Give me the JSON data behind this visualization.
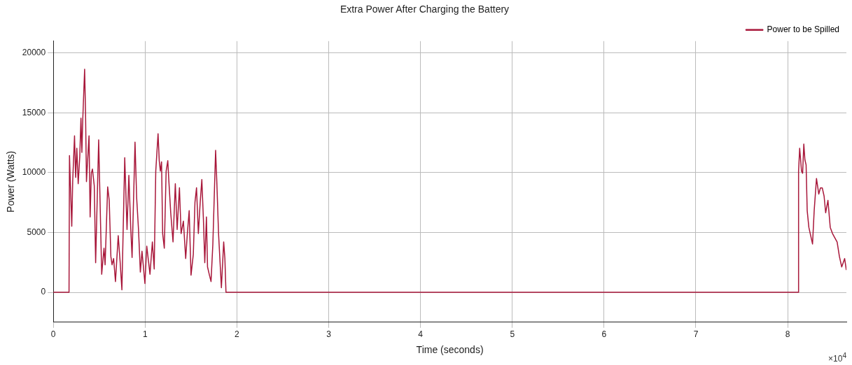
{
  "chart_data": {
    "type": "line",
    "title": "Extra Power After Charging the Battery",
    "xlabel": "Time (seconds)",
    "ylabel": "Power (Watts)",
    "annotations": [
      "×10$^{4}$"
    ],
    "x": [
      0,
      0.171,
      0.176,
      0.201,
      0.211,
      0.231,
      0.243,
      0.256,
      0.271,
      0.288,
      0.301,
      0.311,
      0.321,
      0.341,
      0.351,
      0.361,
      0.376,
      0.389,
      0.401,
      0.414,
      0.426,
      0.446,
      0.461,
      0.494,
      0.527,
      0.552,
      0.564,
      0.592,
      0.609,
      0.627,
      0.64,
      0.657,
      0.677,
      0.707,
      0.727,
      0.747,
      0.778,
      0.803,
      0.823,
      0.843,
      0.858,
      0.89,
      0.908,
      0.928,
      0.948,
      0.966,
      0.998,
      1.018,
      1.053,
      1.079,
      1.099,
      1.116,
      1.141,
      1.154,
      1.166,
      1.179,
      1.191,
      1.209,
      1.229,
      1.247,
      1.259,
      1.279,
      1.304,
      1.329,
      1.349,
      1.374,
      1.392,
      1.417,
      1.442,
      1.46,
      1.48,
      1.5,
      1.525,
      1.543,
      1.56,
      1.58,
      1.6,
      1.618,
      1.635,
      1.65,
      1.668,
      1.68,
      1.701,
      1.718,
      1.738,
      1.768,
      1.781,
      1.8,
      1.831,
      1.856,
      1.869,
      1.881,
      8.114,
      8.119,
      8.131,
      8.151,
      8.163,
      8.176,
      8.188,
      8.201,
      8.213,
      8.231,
      8.251,
      8.271,
      8.289,
      8.314,
      8.339,
      8.357,
      8.377,
      8.397,
      8.414,
      8.439,
      8.464,
      8.489,
      8.514,
      8.539,
      8.564,
      8.589,
      8.621,
      8.639
    ],
    "series": [
      {
        "name": "Power to be Spilled",
        "color": "#a8173a",
        "values": [
          0,
          0,
          11430,
          5520,
          9260,
          13080,
          9600,
          12040,
          9080,
          11340,
          14560,
          11690,
          14480,
          18650,
          15000,
          9260,
          11340,
          13080,
          6300,
          9950,
          10300,
          8910,
          2470,
          12740,
          1510,
          3690,
          2300,
          8820,
          7690,
          2990,
          2300,
          2820,
          900,
          4730,
          2650,
          210,
          11260,
          5250,
          9780,
          5430,
          2910,
          12560,
          7870,
          5250,
          1690,
          3430,
          730,
          3860,
          1510,
          4210,
          1950,
          10130,
          13260,
          11000,
          10130,
          10910,
          4910,
          3690,
          10130,
          11000,
          9260,
          6650,
          4210,
          9080,
          5250,
          8740,
          4910,
          5950,
          2820,
          4910,
          6820,
          1430,
          3170,
          7520,
          8740,
          4910,
          7520,
          9430,
          6120,
          2470,
          6300,
          2120,
          1430,
          900,
          4040,
          11870,
          9260,
          4910,
          380,
          4210,
          2820,
          0,
          0,
          10130,
          12040,
          10130,
          9950,
          12390,
          11080,
          10650,
          6820,
          5430,
          4730,
          4040,
          6820,
          9520,
          8210,
          8730,
          8730,
          8040,
          6650,
          7690,
          5430,
          4910,
          4560,
          4210,
          2990,
          2120,
          2820,
          1860
        ]
      }
    ],
    "xlim": [
      0,
      8.64
    ],
    "xticks": [
      0,
      1,
      2,
      3,
      4,
      5,
      6,
      7,
      8
    ],
    "ylim": [
      -2500,
      21000
    ],
    "yticks": [
      0,
      5000,
      10000,
      15000,
      20000
    ],
    "grid": true,
    "legend": "top right",
    "marker": "none",
    "line_style": "solid"
  }
}
